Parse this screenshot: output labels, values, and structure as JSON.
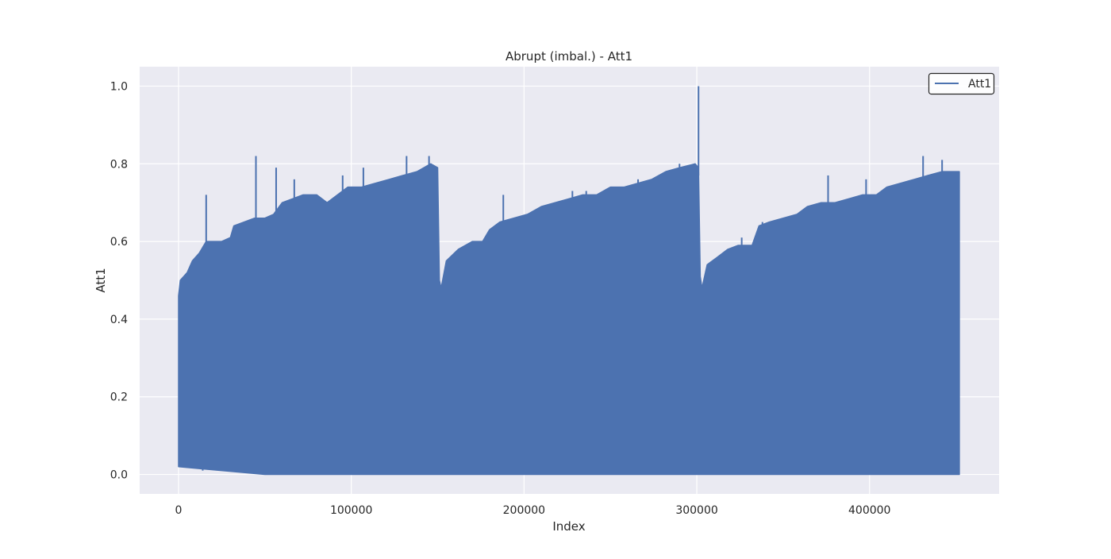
{
  "chart_data": {
    "type": "line",
    "title": "Abrupt (imbal.) - Att1",
    "xlabel": "Index",
    "ylabel": "Att1",
    "xlim": [
      -22500,
      475000
    ],
    "ylim": [
      -0.05,
      1.05
    ],
    "x_ticks": [
      0,
      100000,
      200000,
      300000,
      400000
    ],
    "y_ticks": [
      0.0,
      0.2,
      0.4,
      0.6,
      0.8,
      1.0
    ],
    "x_tick_labels": [
      "0",
      "100000",
      "200000",
      "300000",
      "400000"
    ],
    "y_tick_labels": [
      "0.0",
      "0.2",
      "0.4",
      "0.6",
      "0.8",
      "1.0"
    ],
    "grid": true,
    "legend_position": "top-right",
    "series": [
      {
        "name": "Att1",
        "color": "#4c72b0",
        "lower_envelope": [
          [
            0,
            0.02
          ],
          [
            50000,
            0.0
          ],
          [
            150000,
            0.0
          ],
          [
            250000,
            0.0
          ],
          [
            350000,
            0.0
          ],
          [
            452000,
            0.0
          ]
        ],
        "upper_envelope": [
          [
            0,
            0.46
          ],
          [
            1000,
            0.5
          ],
          [
            5000,
            0.52
          ],
          [
            8000,
            0.55
          ],
          [
            12000,
            0.57
          ],
          [
            16000,
            0.6
          ],
          [
            20000,
            0.6
          ],
          [
            25000,
            0.6
          ],
          [
            30000,
            0.61
          ],
          [
            32000,
            0.64
          ],
          [
            38000,
            0.65
          ],
          [
            44000,
            0.66
          ],
          [
            50000,
            0.66
          ],
          [
            55000,
            0.67
          ],
          [
            60000,
            0.7
          ],
          [
            66000,
            0.71
          ],
          [
            72000,
            0.72
          ],
          [
            80000,
            0.72
          ],
          [
            86000,
            0.7
          ],
          [
            92000,
            0.72
          ],
          [
            98000,
            0.74
          ],
          [
            106000,
            0.74
          ],
          [
            114000,
            0.75
          ],
          [
            122000,
            0.76
          ],
          [
            130000,
            0.77
          ],
          [
            138000,
            0.78
          ],
          [
            146000,
            0.8
          ],
          [
            150000,
            0.79
          ],
          [
            151000,
            0.5
          ],
          [
            152000,
            0.48
          ],
          [
            155000,
            0.55
          ],
          [
            162000,
            0.58
          ],
          [
            170000,
            0.6
          ],
          [
            176000,
            0.6
          ],
          [
            180000,
            0.63
          ],
          [
            186000,
            0.65
          ],
          [
            194000,
            0.66
          ],
          [
            202000,
            0.67
          ],
          [
            210000,
            0.69
          ],
          [
            218000,
            0.7
          ],
          [
            226000,
            0.71
          ],
          [
            234000,
            0.72
          ],
          [
            242000,
            0.72
          ],
          [
            250000,
            0.74
          ],
          [
            258000,
            0.74
          ],
          [
            266000,
            0.75
          ],
          [
            274000,
            0.76
          ],
          [
            282000,
            0.78
          ],
          [
            290000,
            0.79
          ],
          [
            299000,
            0.8
          ],
          [
            301000,
            0.79
          ],
          [
            302000,
            0.51
          ],
          [
            303000,
            0.48
          ],
          [
            306000,
            0.54
          ],
          [
            312000,
            0.56
          ],
          [
            318000,
            0.58
          ],
          [
            324000,
            0.59
          ],
          [
            332000,
            0.59
          ],
          [
            336000,
            0.64
          ],
          [
            342000,
            0.65
          ],
          [
            350000,
            0.66
          ],
          [
            358000,
            0.67
          ],
          [
            364000,
            0.69
          ],
          [
            372000,
            0.7
          ],
          [
            380000,
            0.7
          ],
          [
            388000,
            0.71
          ],
          [
            396000,
            0.72
          ],
          [
            404000,
            0.72
          ],
          [
            410000,
            0.74
          ],
          [
            418000,
            0.75
          ],
          [
            426000,
            0.76
          ],
          [
            434000,
            0.77
          ],
          [
            442000,
            0.78
          ],
          [
            452000,
            0.78
          ]
        ],
        "spikes": [
          [
            16000,
            0.72
          ],
          [
            44800,
            0.82
          ],
          [
            56500,
            0.79
          ],
          [
            67000,
            0.76
          ],
          [
            95000,
            0.77
          ],
          [
            107000,
            0.79
          ],
          [
            132000,
            0.82
          ],
          [
            145000,
            0.82
          ],
          [
            188000,
            0.72
          ],
          [
            228000,
            0.73
          ],
          [
            236000,
            0.73
          ],
          [
            256000,
            0.73
          ],
          [
            266000,
            0.76
          ],
          [
            290000,
            0.8
          ],
          [
            301000,
            1.0
          ],
          [
            326000,
            0.61
          ],
          [
            338000,
            0.65
          ],
          [
            358000,
            0.67
          ],
          [
            376000,
            0.77
          ],
          [
            398000,
            0.76
          ],
          [
            431000,
            0.82
          ],
          [
            442000,
            0.81
          ]
        ],
        "dips": [
          [
            1000,
            0.02
          ],
          [
            14000,
            0.01
          ],
          [
            60000,
            0.01
          ],
          [
            121000,
            0.01
          ],
          [
            148000,
            0.01
          ],
          [
            190000,
            0.0
          ],
          [
            268000,
            0.01
          ],
          [
            300000,
            0.01
          ],
          [
            360000,
            0.01
          ],
          [
            420000,
            0.01
          ]
        ]
      }
    ]
  }
}
